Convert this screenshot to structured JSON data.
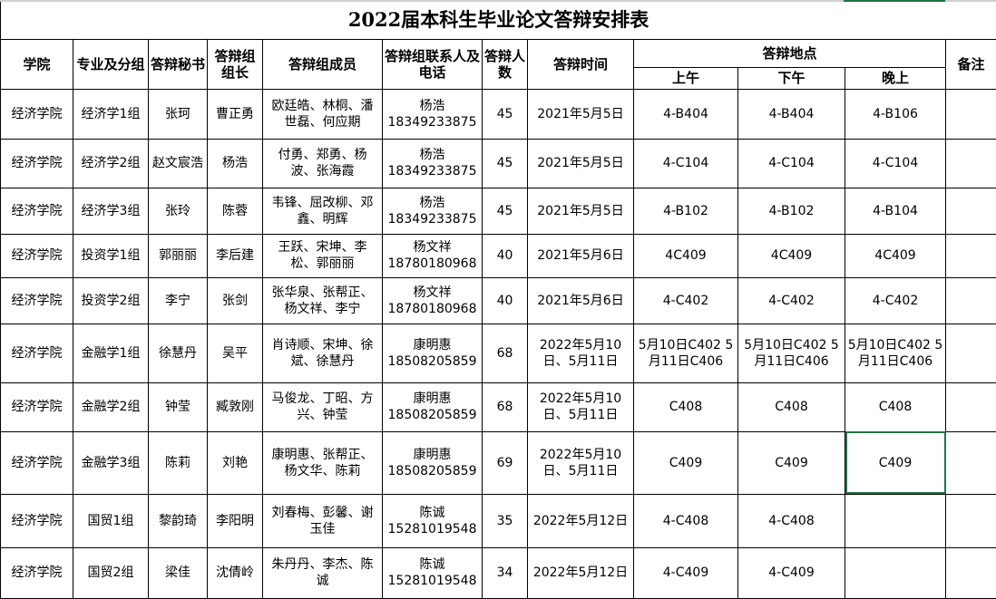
{
  "title": "2022届本科生毕业论文答辩安排表",
  "headers": {
    "college": "学院",
    "major_group": "专业及分组",
    "secretary": "答辩秘书",
    "leader": "答辩组组长",
    "members": "答辩组成员",
    "contact": "答辩组联系人及电话",
    "count": "答辩人数",
    "time": "答辩时间",
    "location": "答辩地点",
    "morning": "上午",
    "afternoon": "下午",
    "evening": "晚上",
    "remarks": "备注"
  },
  "rows": [
    {
      "college": "经济学院",
      "group": "经济学1组",
      "secretary": "张珂",
      "leader": "曹正勇",
      "members": "欧廷皓、林桐、潘世磊、何应期",
      "contact": "杨浩",
      "phone": "18349233875",
      "count": "45",
      "time": "2021年5月5日",
      "am": "4-B404",
      "pm": "4-B404",
      "eve": "4-B106",
      "note": ""
    },
    {
      "college": "经济学院",
      "group": "经济学2组",
      "secretary": "赵文宸浩",
      "leader": "杨浩",
      "members": "付勇、郑勇、杨波、张海霞",
      "contact": "杨浩",
      "phone": "18349233875",
      "count": "45",
      "time": "2021年5月5日",
      "am": "4-C104",
      "pm": "4-C104",
      "eve": "4-C104",
      "note": ""
    },
    {
      "college": "经济学院",
      "group": "经济学3组",
      "secretary": "张玲",
      "leader": "陈蓉",
      "members": "韦锋、屈改柳、邓鑫、明辉",
      "contact": "杨浩",
      "phone": "18349233875",
      "count": "45",
      "time": "2021年5月5日",
      "am": "4-B102",
      "pm": "4-B102",
      "eve": "4-B104",
      "note": ""
    },
    {
      "college": "经济学院",
      "group": "投资学1组",
      "secretary": "郭丽丽",
      "leader": "李后建",
      "members": "王跃、宋坤、李松、郭丽丽",
      "contact": "杨文祥",
      "phone": "18780180968",
      "count": "40",
      "time": "2021年5月6日",
      "am": "4C409",
      "pm": "4C409",
      "eve": "4C409",
      "note": ""
    },
    {
      "college": "经济学院",
      "group": "投资学2组",
      "secretary": "李宁",
      "leader": "张剑",
      "members": "张华泉、张帮正、杨文祥、李宁",
      "contact": "杨文祥",
      "phone": "18780180968",
      "count": "40",
      "time": "2021年5月6日",
      "am": "4-C402",
      "pm": "4-C402",
      "eve": "4-C402",
      "note": ""
    },
    {
      "college": "经济学院",
      "group": "金融学1组",
      "secretary": "徐慧丹",
      "leader": "吴平",
      "members": "肖诗顺、宋坤、徐斌、徐慧丹",
      "contact": "康明惠",
      "phone": "18508205859",
      "count": "68",
      "time": "2022年5月10日、5月11日",
      "am": "5月10日C402 5月11日C406",
      "pm": "5月10日C402 5月11日C406",
      "eve": "5月10日C402 5月11日C406",
      "note": ""
    },
    {
      "college": "经济学院",
      "group": "金融学2组",
      "secretary": "钟莹",
      "leader": "臧敦刚",
      "members": "马俊龙、丁昭、方兴、钟莹",
      "contact": "康明惠",
      "phone": "18508205859",
      "count": "68",
      "time": "2022年5月10日、5月11日",
      "am": "C408",
      "pm": "C408",
      "eve": "C408",
      "note": ""
    },
    {
      "college": "经济学院",
      "group": "金融学3组",
      "secretary": "陈莉",
      "leader": "刘艳",
      "members": "康明惠、张帮正、杨文华、陈莉",
      "contact": "康明惠",
      "phone": "18508205859",
      "count": "69",
      "time": "2022年5月10日、5月11日",
      "am": "C409",
      "pm": "C409",
      "eve": "C409",
      "note": ""
    },
    {
      "college": "经济学院",
      "group": "国贸1组",
      "secretary": "黎韵琦",
      "leader": "李阳明",
      "members": "刘春梅、彭馨、谢玉佳",
      "contact": "陈诚",
      "phone": "15281019548",
      "count": "35",
      "time": "2022年5月12日",
      "am": "4-C408",
      "pm": "4-C408",
      "eve": "",
      "note": ""
    },
    {
      "college": "经济学院",
      "group": "国贸2组",
      "secretary": "梁佳",
      "leader": "沈倩岭",
      "members": "朱丹丹、李杰、陈　诚",
      "contact": "陈诚",
      "phone": "15281019548",
      "count": "34",
      "time": "2022年5月12日",
      "am": "4-C409",
      "pm": "4-C409",
      "eve": "",
      "note": ""
    }
  ],
  "colors": {
    "selection": "#217346",
    "grid": "#000000"
  }
}
